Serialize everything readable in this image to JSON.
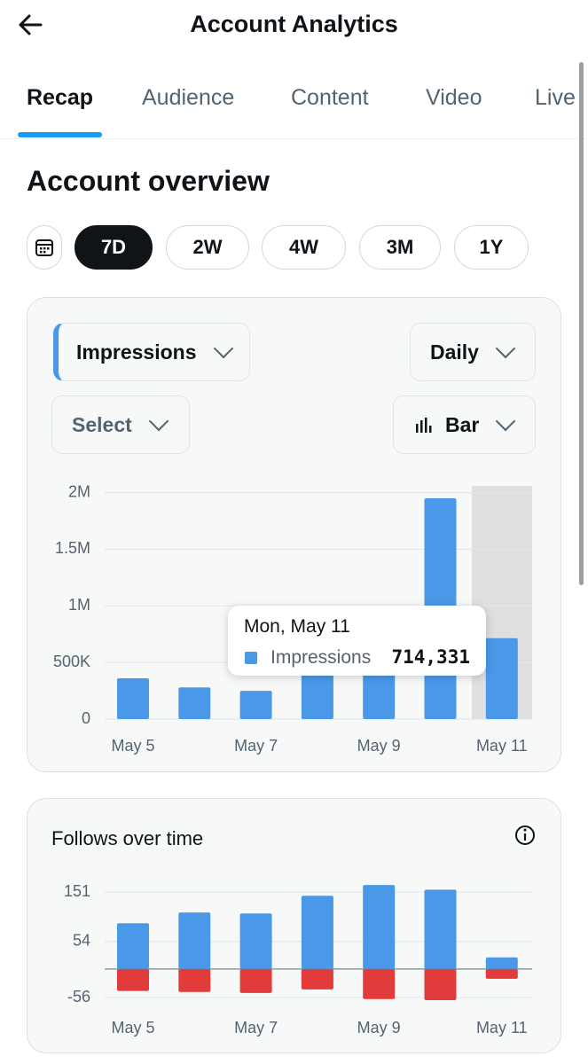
{
  "header": {
    "title": "Account Analytics"
  },
  "tabs": {
    "items": [
      "Recap",
      "Audience",
      "Content",
      "Video",
      "Live"
    ],
    "active": 0
  },
  "overview": {
    "title": "Account overview",
    "ranges": [
      "7D",
      "2W",
      "4W",
      "3M",
      "1Y"
    ],
    "active_range": 0,
    "metric": "Impressions",
    "interval": "Daily",
    "compare": "Select",
    "chart_kind": "Bar"
  },
  "chart_data": [
    {
      "type": "bar",
      "categories": [
        "May 5",
        null,
        "May 7",
        null,
        "May 9",
        null,
        "May 11"
      ],
      "series": [
        {
          "name": "Impressions",
          "color": "#4a99e9",
          "values": [
            360000,
            280000,
            250000,
            450000,
            500000,
            1950000,
            714331
          ],
          "value_labels": [
            null,
            null,
            null,
            null,
            null,
            null,
            "714,331"
          ]
        }
      ],
      "ylim": [
        0,
        2060000
      ],
      "yticks": [
        0,
        {
          "value": 500000,
          "label": "500K"
        },
        {
          "value": 1000000,
          "label": "1M"
        },
        {
          "value": 1500000,
          "label": "1.5M"
        },
        {
          "value": 2000000,
          "label": "2M"
        }
      ],
      "grid": true,
      "highlight_index": 6,
      "tooltip": {
        "title": "Mon, May 11"
      }
    },
    {
      "type": "bar",
      "title": "Follows over time",
      "categories": [
        "May 5",
        null,
        "May 7",
        null,
        "May 9",
        null,
        "May 11"
      ],
      "series": [
        {
          "color": "#4a99e9",
          "values": [
            90,
            111,
            109,
            144,
            165,
            156,
            23
          ]
        },
        {
          "color": "#e23b3b",
          "values": [
            -43,
            -45,
            -47,
            -40,
            -59,
            -61,
            -19
          ]
        }
      ],
      "ylim": [
        -82,
        167
      ],
      "yticks": [
        -56,
        54,
        151
      ],
      "grid": true
    }
  ]
}
